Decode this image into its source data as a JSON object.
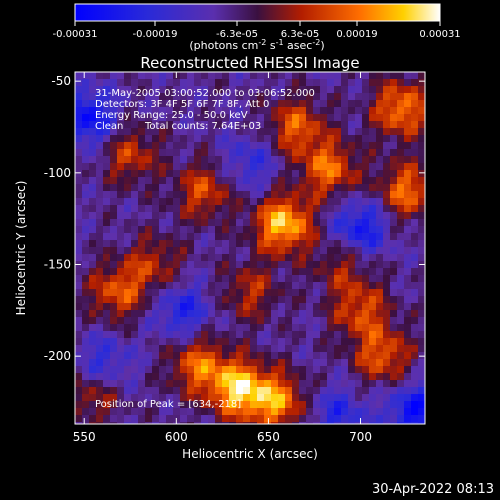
{
  "chart_data": {
    "type": "heatmap",
    "title": "Reconstructed RHESSI Image",
    "xlabel": "Heliocentric X (arcsec)",
    "ylabel": "Heliocentric Y (arcsec)",
    "xlim": [
      545,
      735
    ],
    "ylim": [
      -237,
      -45
    ],
    "xticks": [
      550,
      600,
      650,
      700
    ],
    "yticks": [
      -50,
      -100,
      -150,
      -200
    ],
    "colorbar": {
      "ticks": [
        "-0.00031",
        "-0.00019",
        "-6.3e-05",
        "6.3e-05",
        "0.00019",
        "0.00031"
      ],
      "unit": "(photons cm",
      "unit_sup1": "-2",
      "unit_mid": " s",
      "unit_sup2": "-1",
      "unit_end": " asec",
      "unit_sup3": "-2",
      "unit_close": ")",
      "range": [
        -0.00031,
        0.00031
      ]
    },
    "annotations": [
      "31-May-2005 03:00:52.000 to 03:06:52.000",
      "Detectors: 3F 4F 5F 6F 7F 8F, Att 0",
      "Energy Range: 25.0 - 50.0 keV",
      "Clean",
      "Total counts: 7.64E+03"
    ],
    "peak_label": "Position of Peak = [634,-218]",
    "peak": [
      634,
      -218
    ],
    "bright_sources": [
      {
        "x": 658,
        "y": -128,
        "value": 0.00031
      },
      {
        "x": 634,
        "y": -218,
        "value": 0.00031
      },
      {
        "x": 683,
        "y": -98,
        "value": 0.00022
      },
      {
        "x": 722,
        "y": -65,
        "value": 0.00024
      },
      {
        "x": 725,
        "y": -110,
        "value": 0.00022
      },
      {
        "x": 665,
        "y": -75,
        "value": 0.0002
      },
      {
        "x": 568,
        "y": -165,
        "value": 0.00019
      },
      {
        "x": 615,
        "y": -110,
        "value": 0.00018
      },
      {
        "x": 575,
        "y": -90,
        "value": 0.00016
      },
      {
        "x": 700,
        "y": -175,
        "value": 0.00018
      },
      {
        "x": 712,
        "y": -200,
        "value": 0.0002
      },
      {
        "x": 655,
        "y": -225,
        "value": 0.00024
      },
      {
        "x": 612,
        "y": -205,
        "value": 0.00021
      },
      {
        "x": 588,
        "y": -150,
        "value": 0.00014
      },
      {
        "x": 555,
        "y": -220,
        "value": 0.00015
      },
      {
        "x": 640,
        "y": -165,
        "value": 0.00014
      },
      {
        "x": 690,
        "y": -150,
        "value": 0.00012
      }
    ],
    "dim_sources": [
      {
        "x": 552,
        "y": -70,
        "value": -0.00022
      },
      {
        "x": 603,
        "y": -175,
        "value": -0.00016
      },
      {
        "x": 700,
        "y": -130,
        "value": -0.0002
      },
      {
        "x": 730,
        "y": -230,
        "value": -0.00022
      },
      {
        "x": 560,
        "y": -205,
        "value": -0.00015
      },
      {
        "x": 640,
        "y": -95,
        "value": -0.00012
      },
      {
        "x": 688,
        "y": -232,
        "value": -0.00014
      }
    ]
  },
  "footer": {
    "date": "30-Apr-2022 08:13"
  }
}
